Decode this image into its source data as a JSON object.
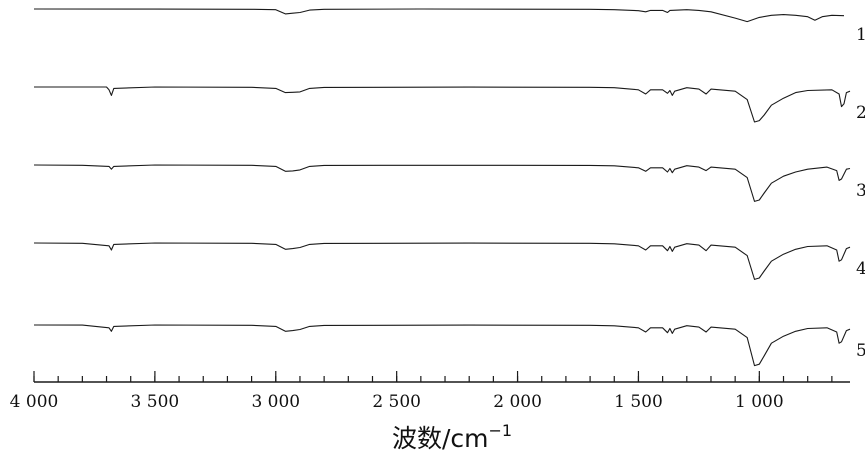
{
  "chart_data": {
    "type": "line",
    "xlabel": "波数/cm",
    "xlabel_sup": "−1",
    "xlim": [
      4000,
      625
    ],
    "x_reversed": true,
    "ticks": [
      {
        "value": 4000,
        "label": "4 000"
      },
      {
        "value": 3500,
        "label": "3 500"
      },
      {
        "value": 3000,
        "label": "3 000"
      },
      {
        "value": 2500,
        "label": "2 500"
      },
      {
        "value": 2000,
        "label": "2 000"
      },
      {
        "value": 1500,
        "label": "1 500"
      },
      {
        "value": 1000,
        "label": "1 000"
      }
    ],
    "minor_tick_step": 100,
    "grid": false,
    "stacked_offsets": true,
    "series": [
      {
        "name": "1",
        "points": [
          [
            4000,
            0
          ],
          [
            3500,
            0.01
          ],
          [
            3100,
            0.02
          ],
          [
            3000,
            0.05
          ],
          [
            2960,
            0.35
          ],
          [
            2930,
            0.3
          ],
          [
            2900,
            0.25
          ],
          [
            2860,
            0.08
          ],
          [
            2800,
            0.02
          ],
          [
            2400,
            0
          ],
          [
            1700,
            0.02
          ],
          [
            1600,
            0.05
          ],
          [
            1500,
            0.12
          ],
          [
            1470,
            0.2
          ],
          [
            1450,
            0.1
          ],
          [
            1400,
            0.1
          ],
          [
            1380,
            0.25
          ],
          [
            1370,
            0.1
          ],
          [
            1300,
            0.05
          ],
          [
            1250,
            0.1
          ],
          [
            1200,
            0.2
          ],
          [
            1100,
            0.65
          ],
          [
            1050,
            0.9
          ],
          [
            1000,
            0.6
          ],
          [
            950,
            0.45
          ],
          [
            900,
            0.4
          ],
          [
            850,
            0.45
          ],
          [
            800,
            0.55
          ],
          [
            770,
            0.8
          ],
          [
            740,
            0.55
          ],
          [
            700,
            0.45
          ],
          [
            650,
            0.48
          ]
        ]
      },
      {
        "name": "2",
        "points": [
          [
            4000,
            0
          ],
          [
            3700,
            0
          ],
          [
            3690,
            0.2
          ],
          [
            3680,
            0.6
          ],
          [
            3670,
            0.1
          ],
          [
            3500,
            0
          ],
          [
            3100,
            0.02
          ],
          [
            3000,
            0.1
          ],
          [
            2960,
            0.4
          ],
          [
            2930,
            0.38
          ],
          [
            2900,
            0.35
          ],
          [
            2860,
            0.1
          ],
          [
            2800,
            0.03
          ],
          [
            2200,
            0.01
          ],
          [
            1700,
            0.02
          ],
          [
            1600,
            0.05
          ],
          [
            1500,
            0.2
          ],
          [
            1470,
            0.5
          ],
          [
            1450,
            0.2
          ],
          [
            1400,
            0.2
          ],
          [
            1380,
            0.45
          ],
          [
            1370,
            0.25
          ],
          [
            1360,
            0.6
          ],
          [
            1350,
            0.3
          ],
          [
            1300,
            0.05
          ],
          [
            1250,
            0.15
          ],
          [
            1220,
            0.5
          ],
          [
            1200,
            0.15
          ],
          [
            1100,
            0.3
          ],
          [
            1050,
            0.9
          ],
          [
            1020,
            2.5
          ],
          [
            1000,
            2.4
          ],
          [
            980,
            2.0
          ],
          [
            950,
            1.3
          ],
          [
            900,
            0.8
          ],
          [
            850,
            0.4
          ],
          [
            800,
            0.25
          ],
          [
            700,
            0.2
          ],
          [
            670,
            0.5
          ],
          [
            660,
            1.4
          ],
          [
            650,
            1.2
          ],
          [
            640,
            0.4
          ],
          [
            625,
            0.3
          ]
        ]
      },
      {
        "name": "3",
        "points": [
          [
            4000,
            0
          ],
          [
            3800,
            0.02
          ],
          [
            3690,
            0.1
          ],
          [
            3680,
            0.3
          ],
          [
            3670,
            0.1
          ],
          [
            3500,
            0
          ],
          [
            3100,
            0.02
          ],
          [
            3000,
            0.1
          ],
          [
            2960,
            0.45
          ],
          [
            2930,
            0.42
          ],
          [
            2900,
            0.35
          ],
          [
            2860,
            0.1
          ],
          [
            2800,
            0.03
          ],
          [
            2400,
            0.02
          ],
          [
            1700,
            0.03
          ],
          [
            1600,
            0.06
          ],
          [
            1500,
            0.2
          ],
          [
            1470,
            0.45
          ],
          [
            1450,
            0.2
          ],
          [
            1400,
            0.2
          ],
          [
            1380,
            0.5
          ],
          [
            1370,
            0.25
          ],
          [
            1360,
            0.55
          ],
          [
            1350,
            0.3
          ],
          [
            1300,
            0.05
          ],
          [
            1250,
            0.15
          ],
          [
            1220,
            0.4
          ],
          [
            1200,
            0.15
          ],
          [
            1100,
            0.3
          ],
          [
            1050,
            0.9
          ],
          [
            1020,
            2.6
          ],
          [
            1000,
            2.5
          ],
          [
            980,
            2.0
          ],
          [
            950,
            1.3
          ],
          [
            900,
            0.8
          ],
          [
            850,
            0.5
          ],
          [
            800,
            0.3
          ],
          [
            720,
            0.15
          ],
          [
            680,
            0.4
          ],
          [
            670,
            1.1
          ],
          [
            660,
            1.0
          ],
          [
            640,
            0.3
          ],
          [
            625,
            0.25
          ]
        ]
      },
      {
        "name": "4",
        "points": [
          [
            4000,
            0
          ],
          [
            3800,
            0.02
          ],
          [
            3690,
            0.2
          ],
          [
            3680,
            0.5
          ],
          [
            3670,
            0.1
          ],
          [
            3500,
            0
          ],
          [
            3100,
            0.02
          ],
          [
            3000,
            0.1
          ],
          [
            2960,
            0.45
          ],
          [
            2930,
            0.4
          ],
          [
            2900,
            0.32
          ],
          [
            2860,
            0.1
          ],
          [
            2800,
            0.03
          ],
          [
            2200,
            0.01
          ],
          [
            1700,
            0.02
          ],
          [
            1600,
            0.06
          ],
          [
            1500,
            0.2
          ],
          [
            1470,
            0.5
          ],
          [
            1450,
            0.2
          ],
          [
            1400,
            0.2
          ],
          [
            1380,
            0.55
          ],
          [
            1370,
            0.25
          ],
          [
            1360,
            0.6
          ],
          [
            1350,
            0.3
          ],
          [
            1300,
            0.05
          ],
          [
            1250,
            0.15
          ],
          [
            1220,
            0.55
          ],
          [
            1200,
            0.15
          ],
          [
            1100,
            0.3
          ],
          [
            1050,
            0.9
          ],
          [
            1020,
            2.6
          ],
          [
            1000,
            2.5
          ],
          [
            980,
            2.0
          ],
          [
            950,
            1.3
          ],
          [
            900,
            0.8
          ],
          [
            850,
            0.45
          ],
          [
            800,
            0.25
          ],
          [
            720,
            0.2
          ],
          [
            680,
            0.5
          ],
          [
            670,
            1.3
          ],
          [
            660,
            1.2
          ],
          [
            640,
            0.4
          ],
          [
            625,
            0.3
          ]
        ]
      },
      {
        "name": "5",
        "points": [
          [
            4000,
            0
          ],
          [
            3800,
            0.01
          ],
          [
            3690,
            0.2
          ],
          [
            3680,
            0.45
          ],
          [
            3670,
            0.1
          ],
          [
            3500,
            0
          ],
          [
            3100,
            0.02
          ],
          [
            3000,
            0.1
          ],
          [
            2960,
            0.45
          ],
          [
            2930,
            0.4
          ],
          [
            2900,
            0.32
          ],
          [
            2860,
            0.1
          ],
          [
            2800,
            0.03
          ],
          [
            2200,
            0.01
          ],
          [
            1700,
            0.02
          ],
          [
            1600,
            0.06
          ],
          [
            1500,
            0.2
          ],
          [
            1470,
            0.5
          ],
          [
            1450,
            0.2
          ],
          [
            1400,
            0.2
          ],
          [
            1380,
            0.55
          ],
          [
            1370,
            0.25
          ],
          [
            1360,
            0.6
          ],
          [
            1350,
            0.3
          ],
          [
            1300,
            0.05
          ],
          [
            1250,
            0.15
          ],
          [
            1220,
            0.5
          ],
          [
            1200,
            0.15
          ],
          [
            1100,
            0.3
          ],
          [
            1050,
            0.9
          ],
          [
            1020,
            2.9
          ],
          [
            1000,
            2.8
          ],
          [
            980,
            2.2
          ],
          [
            950,
            1.3
          ],
          [
            900,
            0.8
          ],
          [
            850,
            0.45
          ],
          [
            800,
            0.25
          ],
          [
            720,
            0.2
          ],
          [
            680,
            0.5
          ],
          [
            670,
            1.3
          ],
          [
            660,
            1.2
          ],
          [
            640,
            0.4
          ],
          [
            625,
            0.3
          ]
        ]
      }
    ]
  }
}
